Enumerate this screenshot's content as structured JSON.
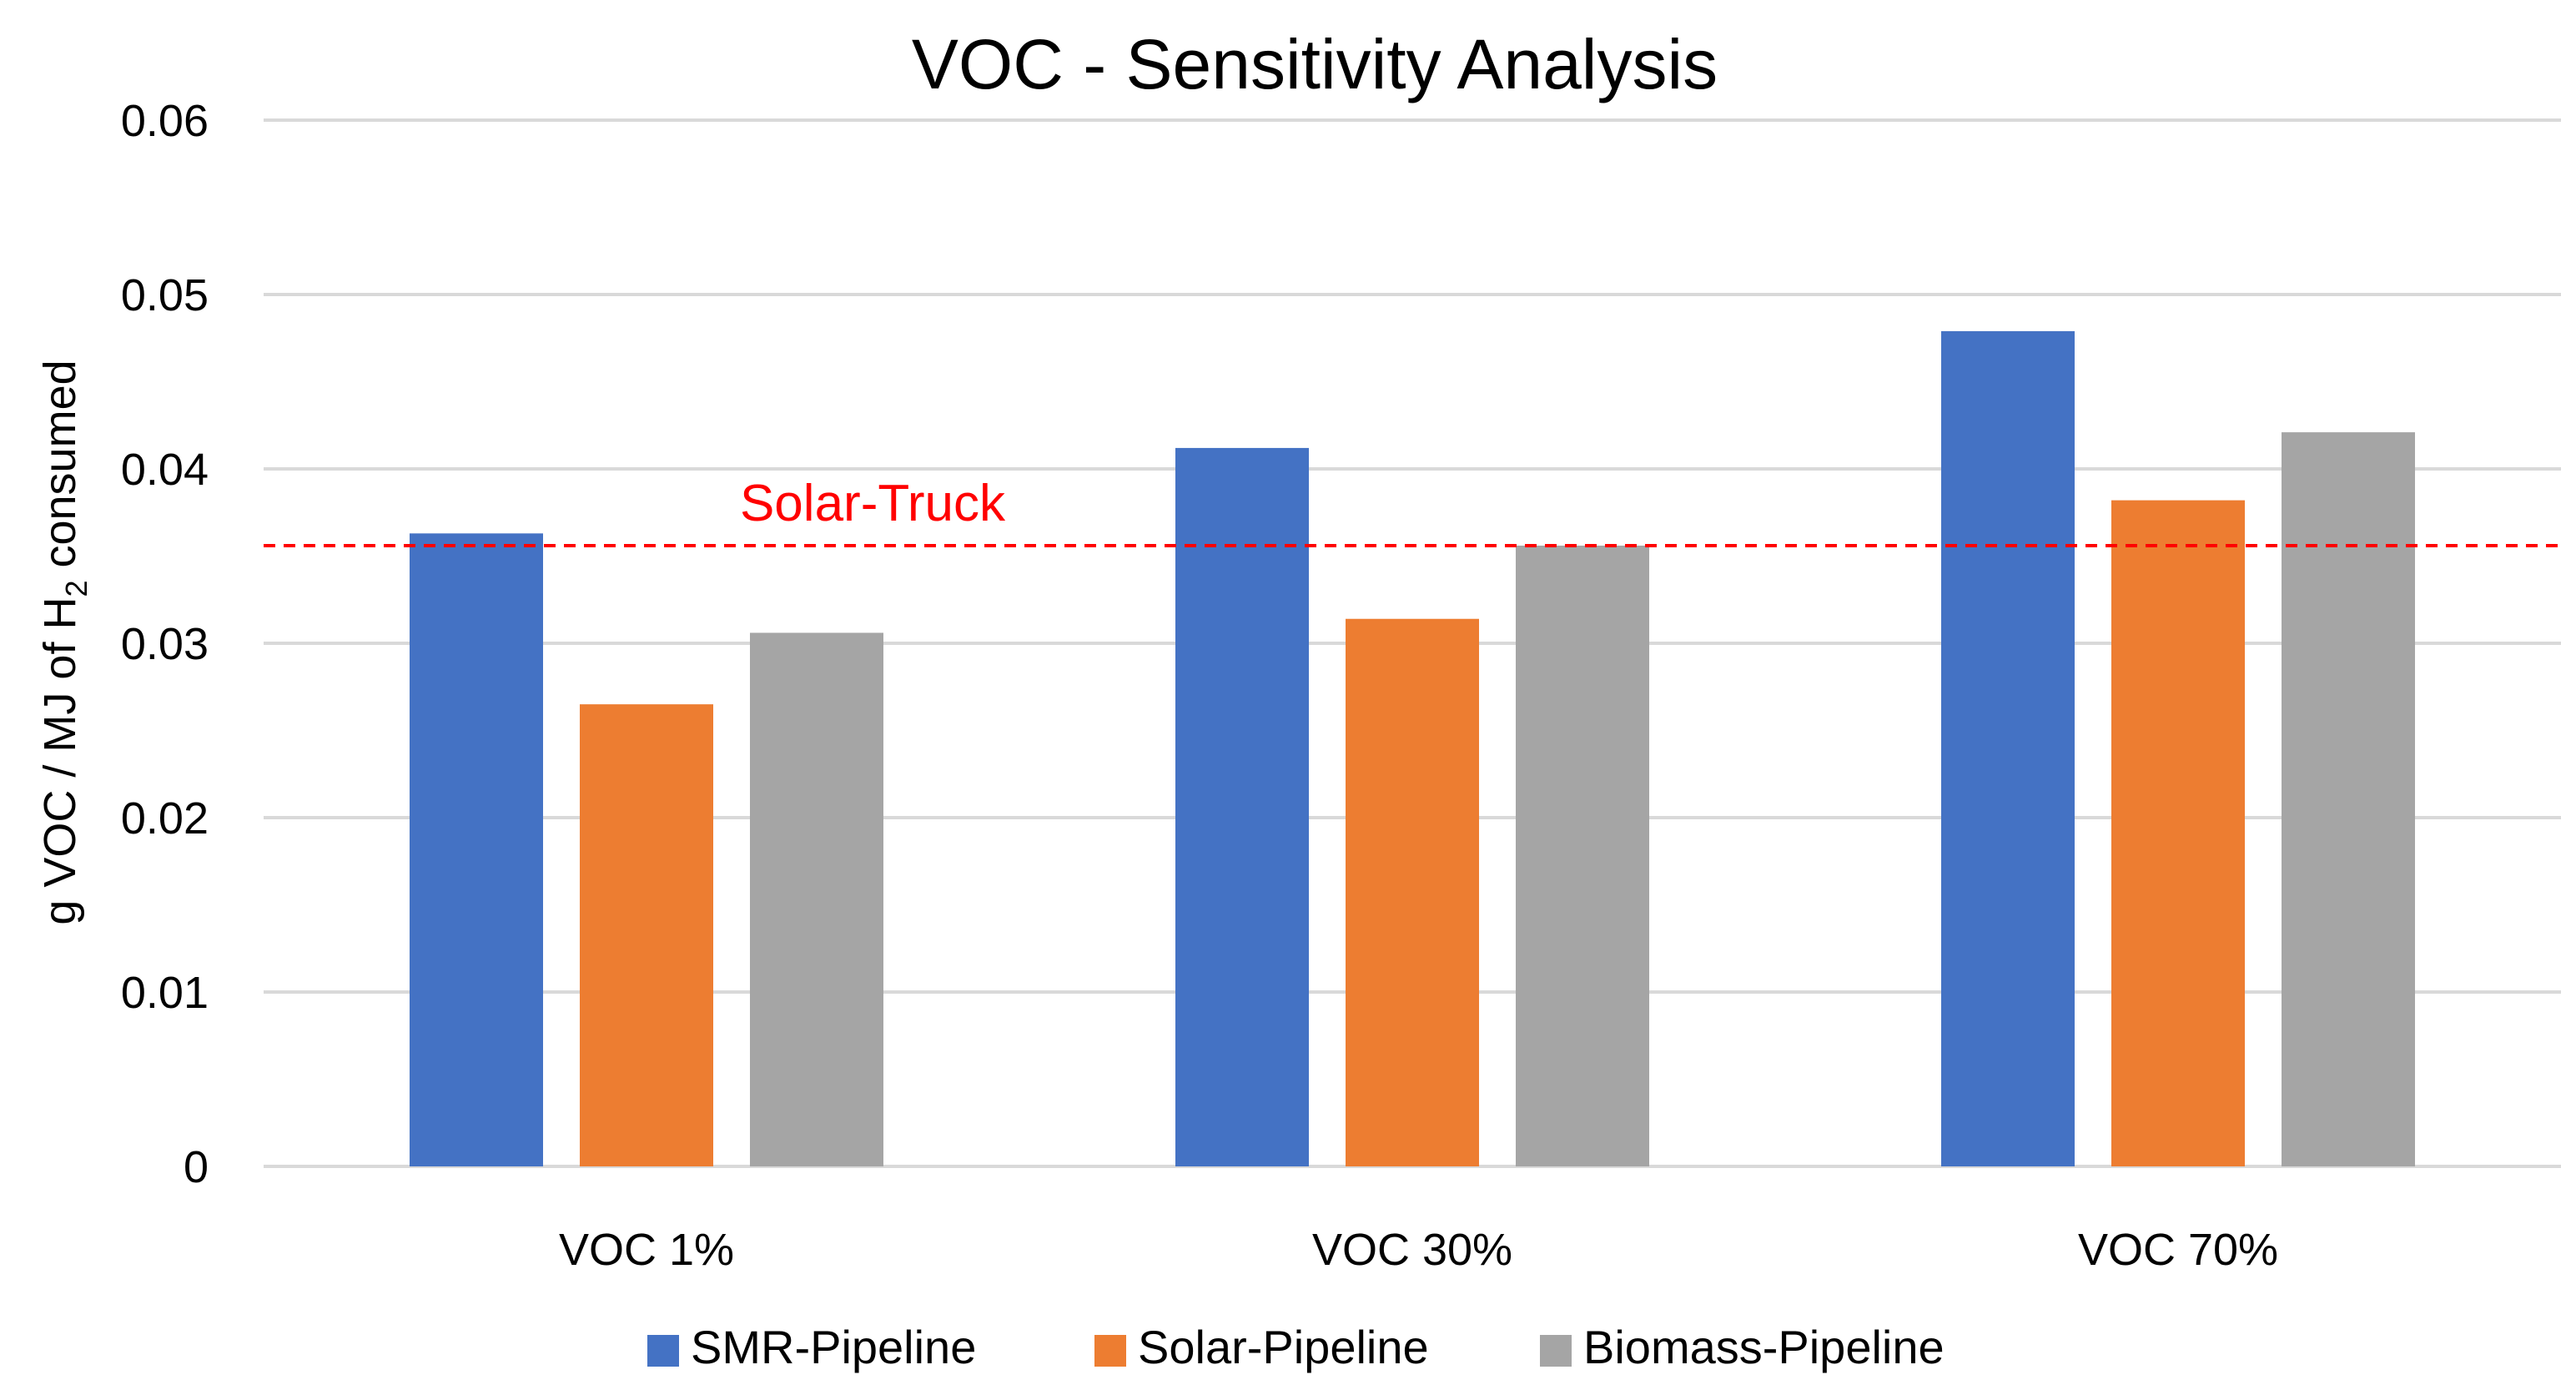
{
  "chart_data": {
    "type": "bar",
    "title": "VOC - Sensitivity Analysis",
    "ylabel": {
      "prefix": "g VOC / MJ of H",
      "subscript": "2",
      "suffix": " consumed"
    },
    "xlabel": "",
    "ylim": [
      0,
      0.06
    ],
    "yticks": [
      0,
      0.01,
      0.02,
      0.03,
      0.04,
      0.05,
      0.06
    ],
    "ytick_labels": [
      "0",
      "0.01",
      "0.02",
      "0.03",
      "0.04",
      "0.05",
      "0.06"
    ],
    "grid": true,
    "categories": [
      "VOC 1%",
      "VOC 30%",
      "VOC 70%"
    ],
    "series": [
      {
        "name": "SMR-Pipeline",
        "color": "#4472C4",
        "values": [
          0.0363,
          0.0412,
          0.0479
        ]
      },
      {
        "name": "Solar-Pipeline",
        "color": "#ED7D31",
        "values": [
          0.0265,
          0.0314,
          0.0382
        ]
      },
      {
        "name": "Biomass-Pipeline",
        "color": "#A5A5A5",
        "values": [
          0.0306,
          0.0356,
          0.0421
        ]
      }
    ],
    "reference_line": {
      "label": "Solar-Truck",
      "value": 0.0356,
      "color": "#FF0000",
      "style": "dashed"
    },
    "legend_position": "bottom"
  }
}
